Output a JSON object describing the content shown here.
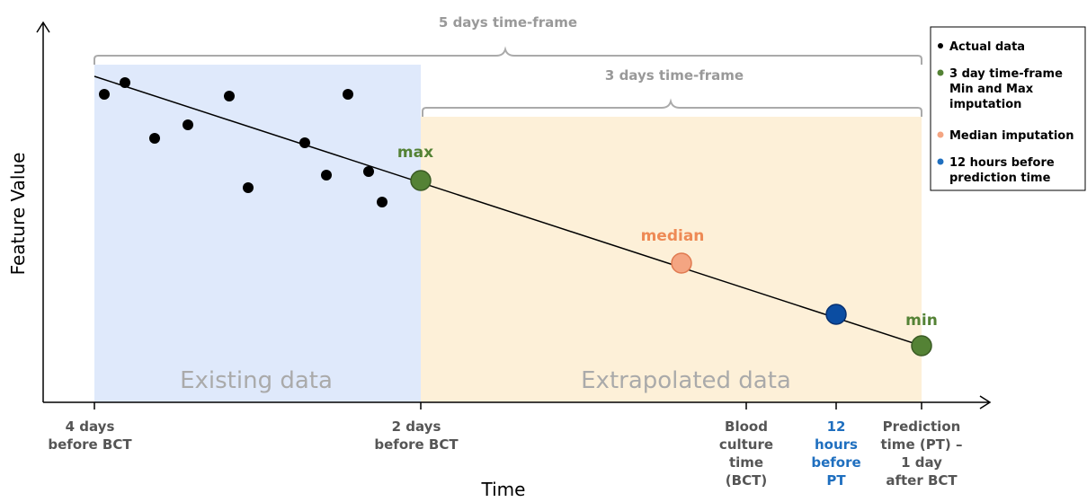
{
  "axes": {
    "y_label": "Feature Value",
    "x_label": "Time"
  },
  "brackets": {
    "five_day": "5 days time-frame",
    "three_day": "3 days time-frame"
  },
  "regions": {
    "existing": "Existing data",
    "extrapolated": "Extrapolated data"
  },
  "points": {
    "max": "max",
    "median": "median",
    "min": "min"
  },
  "x_ticks": [
    [
      "4 days",
      "before BCT"
    ],
    [
      "2 days",
      "before BCT"
    ],
    [
      "Blood",
      "culture",
      "time",
      "(BCT)"
    ],
    [
      "12",
      "hours",
      "before",
      "PT"
    ],
    [
      "Prediction",
      "time (PT) –",
      "1 day",
      "after BCT"
    ]
  ],
  "legend": [
    [
      "Actual data"
    ],
    [
      "3 day time-frame",
      "Min and Max",
      "imputation"
    ],
    [
      "Median imputation"
    ],
    [
      "12 hours before",
      "prediction time"
    ]
  ]
}
